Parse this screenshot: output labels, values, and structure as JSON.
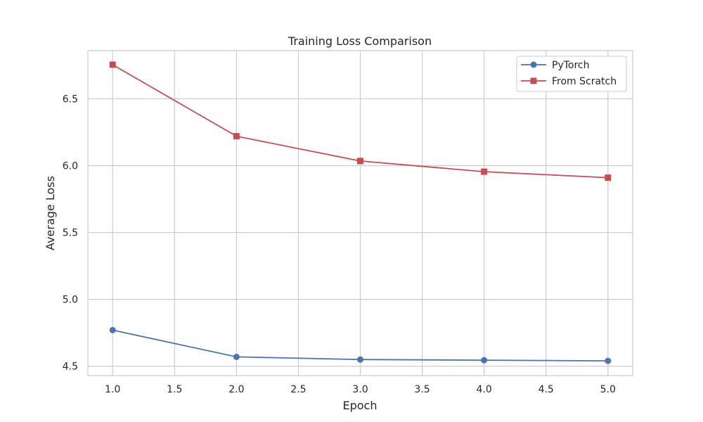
{
  "chart_data": {
    "type": "line",
    "title": "Training Loss Comparison",
    "xlabel": "Epoch",
    "ylabel": "Average Loss",
    "x": [
      1,
      2,
      3,
      4,
      5
    ],
    "xlim": [
      0.8,
      5.2
    ],
    "ylim": [
      4.43,
      6.86
    ],
    "xticks": [
      1.0,
      1.5,
      2.0,
      2.5,
      3.0,
      3.5,
      4.0,
      4.5,
      5.0
    ],
    "yticks": [
      4.5,
      5.0,
      5.5,
      6.0,
      6.5
    ],
    "grid": true,
    "legend_position": "top-right",
    "series": [
      {
        "name": "PyTorch",
        "values": [
          4.77,
          4.57,
          4.55,
          4.545,
          4.54
        ],
        "color": "#4c72b0",
        "marker": "circle"
      },
      {
        "name": "From Scratch",
        "values": [
          6.755,
          6.22,
          6.035,
          5.955,
          5.91
        ],
        "color": "#c44e52",
        "marker": "square"
      }
    ]
  }
}
